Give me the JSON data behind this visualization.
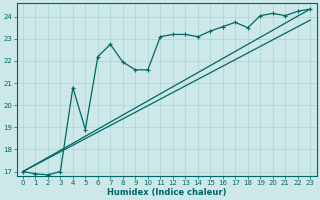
{
  "xlabel": "Humidex (Indice chaleur)",
  "bg_color": "#cce8e8",
  "grid_color": "#aad4d4",
  "line_color": "#006666",
  "xlim": [
    -0.5,
    23.5
  ],
  "ylim": [
    16.8,
    24.6
  ],
  "xticks": [
    0,
    1,
    2,
    3,
    4,
    5,
    6,
    7,
    8,
    9,
    10,
    11,
    12,
    13,
    14,
    15,
    16,
    17,
    18,
    19,
    20,
    21,
    22,
    23
  ],
  "yticks": [
    17,
    18,
    19,
    20,
    21,
    22,
    23,
    24
  ],
  "main_x": [
    0,
    1,
    2,
    3,
    4,
    5,
    6,
    7,
    8,
    9,
    10,
    11,
    12,
    13,
    14,
    15,
    16,
    17,
    18,
    19,
    20,
    21,
    22,
    23
  ],
  "main_y": [
    17.0,
    16.9,
    16.85,
    17.0,
    20.8,
    18.9,
    22.2,
    22.75,
    21.95,
    21.6,
    21.6,
    23.1,
    23.2,
    23.2,
    23.1,
    23.35,
    23.55,
    23.75,
    23.5,
    24.05,
    24.15,
    24.05,
    24.25,
    24.35
  ],
  "line1_x": [
    0,
    23
  ],
  "line1_y": [
    17.0,
    24.35
  ],
  "line2_x": [
    0,
    23
  ],
  "line2_y": [
    17.0,
    23.85
  ]
}
